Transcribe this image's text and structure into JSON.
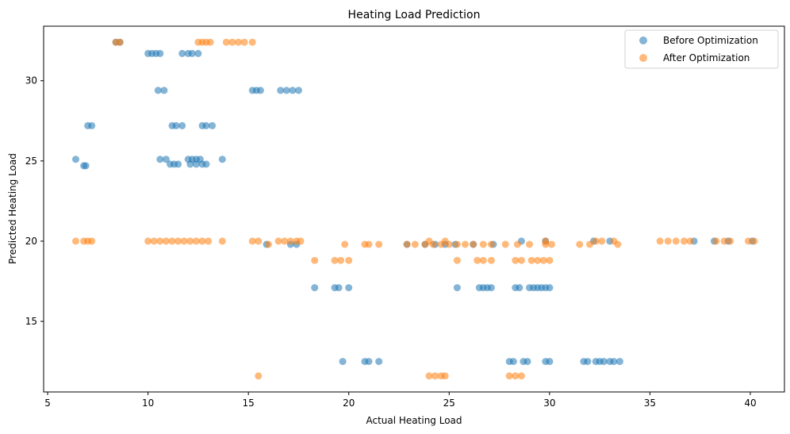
{
  "chart_data": {
    "type": "scatter",
    "title": "Heating Load Prediction",
    "xlabel": "Actual Heating Load",
    "ylabel": "Predicted Heating Load",
    "xlim": [
      4.8,
      41.7
    ],
    "ylim": [
      10.6,
      33.4
    ],
    "xticks": [
      5,
      10,
      15,
      20,
      25,
      30,
      35,
      40
    ],
    "yticks": [
      15,
      20,
      25,
      30
    ],
    "grid": false,
    "legend_position": "top-right",
    "series": [
      {
        "name": "Before Optimization",
        "color": "#1f77b4",
        "points": [
          [
            6.4,
            25.1
          ],
          [
            6.8,
            24.7
          ],
          [
            6.9,
            24.7
          ],
          [
            7.0,
            27.2
          ],
          [
            7.2,
            27.2
          ],
          [
            8.4,
            32.4
          ],
          [
            8.6,
            32.4
          ],
          [
            10.0,
            31.7
          ],
          [
            10.2,
            31.7
          ],
          [
            10.4,
            31.7
          ],
          [
            10.6,
            31.7
          ],
          [
            10.5,
            29.4
          ],
          [
            10.8,
            29.4
          ],
          [
            10.6,
            25.1
          ],
          [
            10.9,
            25.1
          ],
          [
            11.1,
            24.8
          ],
          [
            11.3,
            24.8
          ],
          [
            11.5,
            24.8
          ],
          [
            11.2,
            27.2
          ],
          [
            11.4,
            27.2
          ],
          [
            11.7,
            27.2
          ],
          [
            11.7,
            31.7
          ],
          [
            12.0,
            31.7
          ],
          [
            12.2,
            31.7
          ],
          [
            12.5,
            31.7
          ],
          [
            12.0,
            25.1
          ],
          [
            12.2,
            25.1
          ],
          [
            12.4,
            25.1
          ],
          [
            12.6,
            25.1
          ],
          [
            12.1,
            24.8
          ],
          [
            12.4,
            24.8
          ],
          [
            12.7,
            24.8
          ],
          [
            12.9,
            24.8
          ],
          [
            13.7,
            25.1
          ],
          [
            12.7,
            27.2
          ],
          [
            12.9,
            27.2
          ],
          [
            13.2,
            27.2
          ],
          [
            15.2,
            29.4
          ],
          [
            15.4,
            29.4
          ],
          [
            15.6,
            29.4
          ],
          [
            16.6,
            29.4
          ],
          [
            16.9,
            29.4
          ],
          [
            17.2,
            29.4
          ],
          [
            17.5,
            29.4
          ],
          [
            15.9,
            19.8
          ],
          [
            17.1,
            19.8
          ],
          [
            17.4,
            19.8
          ],
          [
            18.3,
            17.1
          ],
          [
            19.3,
            17.1
          ],
          [
            19.5,
            17.1
          ],
          [
            20.0,
            17.1
          ],
          [
            19.7,
            12.5
          ],
          [
            20.8,
            12.5
          ],
          [
            21.0,
            12.5
          ],
          [
            21.5,
            12.5
          ],
          [
            22.9,
            19.8
          ],
          [
            23.8,
            19.8
          ],
          [
            24.3,
            19.8
          ],
          [
            24.8,
            19.8
          ],
          [
            25.3,
            19.8
          ],
          [
            25.4,
            17.1
          ],
          [
            26.5,
            17.1
          ],
          [
            26.7,
            17.1
          ],
          [
            26.9,
            17.1
          ],
          [
            27.1,
            17.1
          ],
          [
            28.3,
            17.1
          ],
          [
            28.5,
            17.1
          ],
          [
            29.0,
            17.1
          ],
          [
            29.2,
            17.1
          ],
          [
            29.4,
            17.1
          ],
          [
            29.6,
            17.1
          ],
          [
            29.8,
            17.1
          ],
          [
            30.0,
            17.1
          ],
          [
            28.0,
            12.5
          ],
          [
            28.2,
            12.5
          ],
          [
            28.7,
            12.5
          ],
          [
            28.9,
            12.5
          ],
          [
            29.8,
            12.5
          ],
          [
            30.0,
            12.5
          ],
          [
            31.7,
            12.5
          ],
          [
            31.9,
            12.5
          ],
          [
            32.3,
            12.5
          ],
          [
            32.5,
            12.5
          ],
          [
            32.7,
            12.5
          ],
          [
            33.0,
            12.5
          ],
          [
            33.2,
            12.5
          ],
          [
            33.5,
            12.5
          ],
          [
            26.2,
            19.8
          ],
          [
            27.2,
            19.8
          ],
          [
            28.6,
            20.0
          ],
          [
            29.8,
            20.0
          ],
          [
            32.2,
            20.0
          ],
          [
            33.0,
            20.0
          ],
          [
            37.2,
            20.0
          ],
          [
            38.2,
            20.0
          ],
          [
            38.9,
            20.0
          ],
          [
            40.1,
            20.0
          ]
        ]
      },
      {
        "name": "After Optimization",
        "color": "#ff7f0e",
        "points": [
          [
            6.4,
            20.0
          ],
          [
            6.8,
            20.0
          ],
          [
            7.0,
            20.0
          ],
          [
            7.2,
            20.0
          ],
          [
            8.4,
            32.4
          ],
          [
            8.6,
            32.4
          ],
          [
            10.0,
            20.0
          ],
          [
            10.3,
            20.0
          ],
          [
            10.6,
            20.0
          ],
          [
            10.9,
            20.0
          ],
          [
            11.2,
            20.0
          ],
          [
            11.5,
            20.0
          ],
          [
            11.8,
            20.0
          ],
          [
            12.1,
            20.0
          ],
          [
            12.4,
            20.0
          ],
          [
            12.7,
            20.0
          ],
          [
            13.0,
            20.0
          ],
          [
            13.7,
            20.0
          ],
          [
            12.5,
            32.4
          ],
          [
            12.7,
            32.4
          ],
          [
            12.9,
            32.4
          ],
          [
            13.1,
            32.4
          ],
          [
            13.9,
            32.4
          ],
          [
            14.2,
            32.4
          ],
          [
            14.5,
            32.4
          ],
          [
            14.8,
            32.4
          ],
          [
            15.2,
            32.4
          ],
          [
            15.2,
            20.0
          ],
          [
            15.5,
            20.0
          ],
          [
            15.5,
            11.6
          ],
          [
            16.0,
            19.8
          ],
          [
            16.5,
            20.0
          ],
          [
            16.8,
            20.0
          ],
          [
            17.1,
            20.0
          ],
          [
            17.4,
            20.0
          ],
          [
            17.6,
            20.0
          ],
          [
            18.3,
            18.8
          ],
          [
            19.3,
            18.8
          ],
          [
            19.6,
            18.8
          ],
          [
            20.0,
            18.8
          ],
          [
            19.8,
            19.8
          ],
          [
            20.8,
            19.8
          ],
          [
            21.0,
            19.8
          ],
          [
            21.5,
            19.8
          ],
          [
            22.9,
            19.8
          ],
          [
            23.3,
            19.8
          ],
          [
            23.8,
            19.8
          ],
          [
            24.2,
            19.8
          ],
          [
            24.6,
            19.8
          ],
          [
            25.0,
            19.8
          ],
          [
            25.4,
            19.8
          ],
          [
            25.8,
            19.8
          ],
          [
            26.2,
            19.8
          ],
          [
            26.7,
            19.8
          ],
          [
            27.1,
            19.8
          ],
          [
            24.0,
            20.0
          ],
          [
            24.8,
            20.0
          ],
          [
            25.4,
            18.8
          ],
          [
            26.4,
            18.8
          ],
          [
            26.7,
            18.8
          ],
          [
            27.1,
            18.8
          ],
          [
            24.0,
            11.6
          ],
          [
            24.3,
            11.6
          ],
          [
            24.6,
            11.6
          ],
          [
            24.8,
            11.6
          ],
          [
            27.8,
            19.8
          ],
          [
            28.4,
            19.8
          ],
          [
            29.0,
            19.8
          ],
          [
            29.8,
            19.8
          ],
          [
            30.1,
            19.8
          ],
          [
            28.3,
            18.8
          ],
          [
            28.6,
            18.8
          ],
          [
            29.1,
            18.8
          ],
          [
            29.4,
            18.8
          ],
          [
            29.7,
            18.8
          ],
          [
            30.0,
            18.8
          ],
          [
            28.0,
            11.6
          ],
          [
            28.3,
            11.6
          ],
          [
            28.6,
            11.6
          ],
          [
            29.8,
            20.0
          ],
          [
            31.5,
            19.8
          ],
          [
            32.0,
            19.8
          ],
          [
            32.3,
            20.0
          ],
          [
            32.6,
            20.0
          ],
          [
            33.2,
            20.0
          ],
          [
            33.4,
            19.8
          ],
          [
            35.5,
            20.0
          ],
          [
            35.9,
            20.0
          ],
          [
            36.3,
            20.0
          ],
          [
            36.7,
            20.0
          ],
          [
            37.0,
            20.0
          ],
          [
            38.3,
            20.0
          ],
          [
            38.7,
            20.0
          ],
          [
            39.0,
            20.0
          ],
          [
            39.9,
            20.0
          ],
          [
            40.2,
            20.0
          ]
        ]
      }
    ]
  }
}
